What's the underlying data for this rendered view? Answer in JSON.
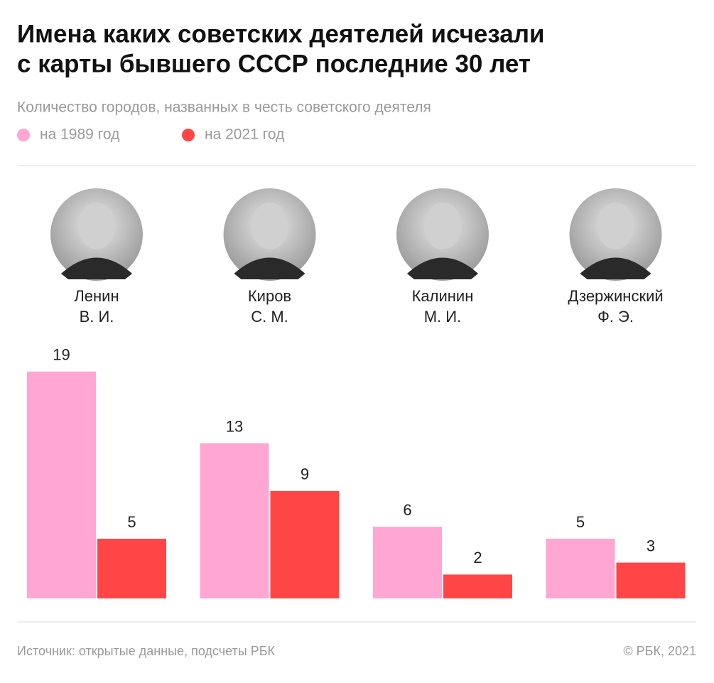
{
  "chart_data": {
    "type": "bar",
    "title": [
      "Имена каких советских деятелей исчезали",
      "с карты бывшего СССР последние 30 лет"
    ],
    "subtitle": "Количество городов, названных в честь советского деятеля",
    "categories": [
      [
        "Ленин",
        "В. И."
      ],
      [
        "Киров",
        "С. М."
      ],
      [
        "Калинин",
        "М. И."
      ],
      [
        "Дзержинский",
        "Ф. Э."
      ]
    ],
    "series": [
      {
        "name": "на 1989 год",
        "color": "#ffa6d3",
        "values": [
          19,
          13,
          6,
          5
        ]
      },
      {
        "name": "на 2021 год",
        "color": "#ff4545",
        "values": [
          5,
          9,
          2,
          3
        ]
      }
    ],
    "source": "Источник: открытые данные, подсчеты РБК",
    "credit": "© РБК, 2021"
  }
}
